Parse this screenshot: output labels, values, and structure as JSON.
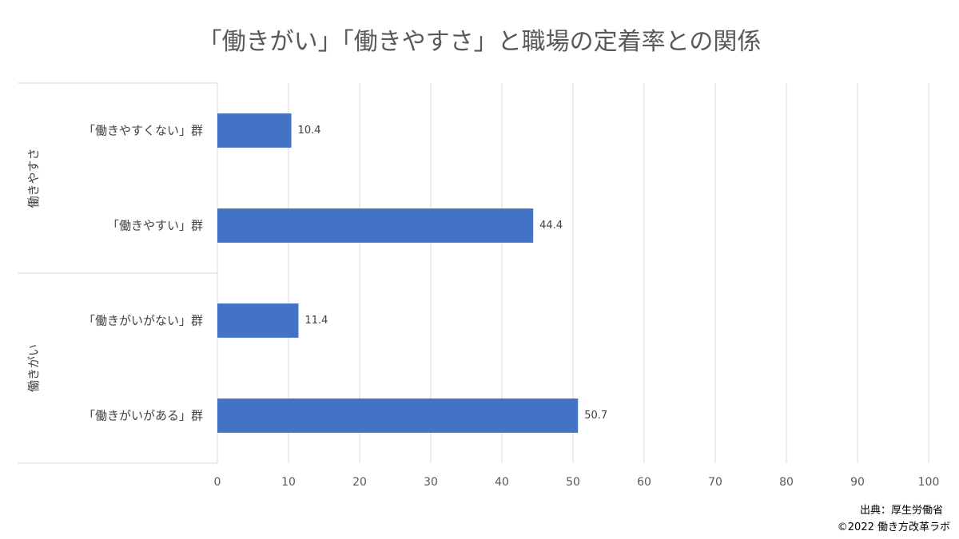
{
  "chart_data": {
    "type": "bar",
    "orientation": "horizontal",
    "title": "「働きがい」「働きやすさ」と職場の定着率との関係",
    "groups": [
      {
        "name": "働きやすさ",
        "categories": [
          "「働きやすくない」群",
          "「働きやすい」群"
        ],
        "values": [
          10.4,
          44.4
        ]
      },
      {
        "name": "働きがい",
        "categories": [
          "「働きがいがない」群",
          "「働きがいがある」群"
        ],
        "values": [
          11.4,
          50.7
        ]
      }
    ],
    "data_labels": [
      "10.4",
      "44.4",
      "11.4",
      "50.7"
    ],
    "xlim": [
      0,
      100
    ],
    "xticks": [
      "0",
      "10",
      "20",
      "30",
      "40",
      "50",
      "60",
      "70",
      "80",
      "90",
      "100"
    ],
    "grid": "vertical",
    "bar_color": "#4472C4",
    "grid_color": "#D9D9D9"
  },
  "source": "出典：厚生労働省",
  "copyright": "©2022 働き方改革ラボ"
}
